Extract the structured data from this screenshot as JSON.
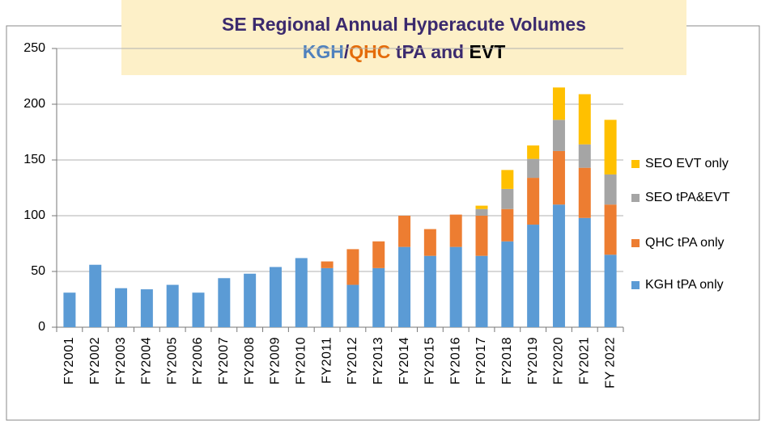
{
  "chart_data": {
    "type": "stacked_bar",
    "title": "SE Regional Annual Hyperacute Volumes",
    "title_color": "#3b2a6e",
    "subtitle_parts": [
      {
        "text": "KGH",
        "color": "#4f81bd"
      },
      {
        "text": "/",
        "color": "#3b2a6e"
      },
      {
        "text": "QHC",
        "color": "#e46c0a"
      },
      {
        "text": " tPA and ",
        "color": "#3b2a6e"
      },
      {
        "text": "EVT",
        "color": "#000000"
      }
    ],
    "categories": [
      "FY2001",
      "FY2002",
      "FY2003",
      "FY2004",
      "FY2005",
      "FY2006",
      "FY2007",
      "FY2008",
      "FY2009",
      "FY2010",
      "FY2011",
      "FY2012",
      "FY2013",
      "FY2014",
      "FY2015",
      "FY2016",
      "FY2017",
      "FY2018",
      "FY2019",
      "FY2020",
      "FY2021",
      "FY 2022"
    ],
    "series": [
      {
        "name": "KGH tPA only",
        "color": "#5b9bd5",
        "values": [
          31,
          56,
          35,
          34,
          38,
          31,
          44,
          48,
          54,
          62,
          53,
          38,
          53,
          72,
          64,
          72,
          64,
          77,
          92,
          110,
          98,
          65
        ]
      },
      {
        "name": "QHC tPA only",
        "color": "#ed7d31",
        "values": [
          null,
          null,
          null,
          null,
          null,
          null,
          null,
          null,
          null,
          null,
          6,
          32,
          24,
          28,
          24,
          29,
          36,
          29,
          42,
          48,
          45,
          45
        ]
      },
      {
        "name": "SEO tPA&EVT",
        "color": "#a5a5a5",
        "values": [
          null,
          null,
          null,
          null,
          null,
          null,
          null,
          null,
          null,
          null,
          null,
          null,
          null,
          null,
          null,
          null,
          6,
          18,
          17,
          28,
          21,
          27
        ]
      },
      {
        "name": "SEO EVT only",
        "color": "#ffc000",
        "values": [
          null,
          null,
          null,
          null,
          null,
          null,
          null,
          null,
          null,
          null,
          null,
          null,
          null,
          null,
          null,
          null,
          3,
          17,
          12,
          29,
          45,
          49
        ]
      }
    ],
    "ylim": [
      0,
      250
    ],
    "yticks": [
      0,
      50,
      100,
      150,
      200,
      250
    ],
    "grid": true,
    "legend": "right"
  }
}
